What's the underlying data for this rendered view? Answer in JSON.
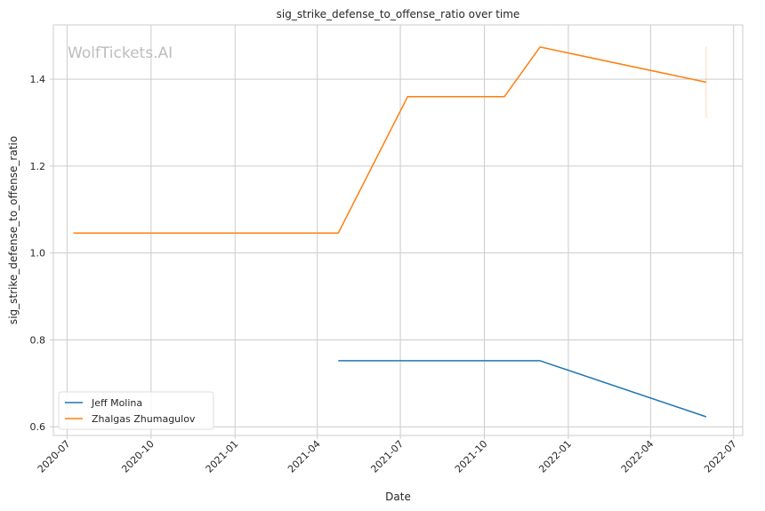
{
  "chart_data": {
    "type": "line",
    "title": "sig_strike_defense_to_offense_ratio over time",
    "xlabel": "Date",
    "ylabel": "sig_strike_defense_to_offense_ratio",
    "watermark": "WolfTickets.AI",
    "x_ticks": [
      "2020-07",
      "2020-10",
      "2021-01",
      "2021-04",
      "2021-07",
      "2021-10",
      "2022-01",
      "2022-04",
      "2022-07"
    ],
    "y_ticks": [
      0.6,
      0.8,
      1.0,
      1.2,
      1.4
    ],
    "xlim": [
      "2020-06-16",
      "2022-07-11"
    ],
    "ylim": [
      0.58,
      1.525
    ],
    "grid": true,
    "legend_position": "lower-left",
    "series": [
      {
        "name": "Jeff Molina",
        "color": "#1f77b4",
        "points": [
          {
            "x": "2021-04-24",
            "y": 0.752
          },
          {
            "x": "2021-12-01",
            "y": 0.752
          },
          {
            "x": "2022-06-01",
            "y": 0.623
          }
        ]
      },
      {
        "name": "Zhalgas Zhumagulov",
        "color": "#ff7f0e",
        "points": [
          {
            "x": "2020-07-08",
            "y": 1.046
          },
          {
            "x": "2021-04-24",
            "y": 1.046
          },
          {
            "x": "2021-07-09",
            "y": 1.36
          },
          {
            "x": "2021-10-23",
            "y": 1.36
          },
          {
            "x": "2021-12-01",
            "y": 1.474
          },
          {
            "x": "2022-06-01",
            "y": 1.393
          }
        ]
      }
    ],
    "error_bars": [
      {
        "series": "Zhalgas Zhumagulov",
        "x": "2022-06-01",
        "low": 1.31,
        "high": 1.475,
        "color": "#ff7f0e"
      }
    ]
  }
}
